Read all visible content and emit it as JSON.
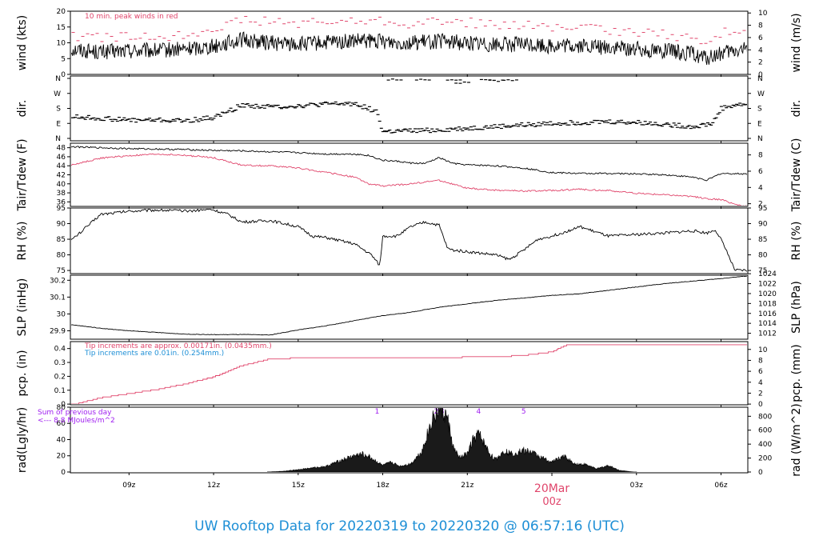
{
  "title": "UW Rooftop Data for 20220319  to  20220320 @ 06:57:16  (UTC)",
  "date_marker": {
    "date": "20Mar",
    "hour": "00z"
  },
  "colors": {
    "black": "#000000",
    "red": "#e0456b",
    "blue": "#1e8fd6",
    "purple": "#a020f0"
  },
  "x_axis": {
    "range_hours": [
      6.92,
      30.95
    ],
    "ticks": [
      {
        "h": 9,
        "label": "09z"
      },
      {
        "h": 12,
        "label": "12z"
      },
      {
        "h": 15,
        "label": "15z"
      },
      {
        "h": 18,
        "label": "18z"
      },
      {
        "h": 21,
        "label": "21z"
      },
      {
        "h": 27,
        "label": "03z"
      },
      {
        "h": 30,
        "label": "06z"
      }
    ]
  },
  "chart_data": [
    {
      "type": "line",
      "panel": "wind",
      "ylabel_left": "wind (kts)",
      "ylabel_right": "wind (m/s)",
      "ylim": [
        0,
        20
      ],
      "yticks": [
        0,
        5,
        10,
        15,
        20
      ],
      "right_ylim": [
        0,
        10.29
      ],
      "right_yticks": [
        0,
        2,
        4,
        6,
        8,
        10
      ],
      "annotation": "10 min. peak winds in red",
      "series": [
        {
          "role": "wind",
          "color": "#000000",
          "x": [
            7,
            8,
            9,
            10,
            11,
            12,
            13,
            14,
            15,
            16,
            17,
            18,
            19,
            20,
            21,
            22,
            23,
            24,
            25,
            26,
            27,
            28,
            29,
            29.5,
            30,
            30.9
          ],
          "y": [
            8,
            7,
            7.5,
            7.5,
            8,
            9,
            11,
            10,
            9.5,
            10,
            10.5,
            10.5,
            10,
            10.5,
            10,
            9.5,
            9.5,
            9,
            9,
            8.5,
            8,
            7.5,
            6.5,
            5,
            6.5,
            8
          ]
        },
        {
          "role": "peak",
          "color": "#e0456b",
          "style": "dashes",
          "x": [
            7,
            8,
            9,
            10,
            11,
            12,
            13,
            14,
            15,
            16,
            17,
            18,
            19,
            20,
            21,
            22,
            23,
            24,
            25,
            26,
            27,
            28,
            29,
            29.5,
            30,
            30.9
          ],
          "y": [
            12,
            11.5,
            12,
            12,
            12.5,
            15,
            17,
            17,
            16,
            16.5,
            17,
            17,
            16,
            17,
            16.5,
            15.5,
            15.5,
            15,
            14.5,
            14,
            13.5,
            12.5,
            11.5,
            9,
            13,
            15
          ]
        }
      ]
    },
    {
      "type": "scatter",
      "panel": "dir",
      "ylabel_left": "dir.",
      "ylabel_right": "dir.",
      "categories": [
        "N",
        "E",
        "S",
        "W",
        "N"
      ],
      "ylim": [
        0,
        360
      ],
      "series": [
        {
          "role": "direction_deg",
          "color": "#000000",
          "x": [
            7,
            8,
            9,
            10,
            11,
            12,
            12.5,
            13,
            14,
            15,
            16,
            17,
            17.8,
            18,
            19,
            20,
            21,
            22,
            23,
            24,
            25,
            26,
            27,
            28,
            29,
            29.7,
            30,
            30.5,
            30.9
          ],
          "y": [
            130,
            120,
            110,
            110,
            105,
            125,
            160,
            200,
            190,
            195,
            205,
            210,
            160,
            40,
            45,
            50,
            60,
            70,
            80,
            90,
            95,
            100,
            95,
            85,
            70,
            90,
            180,
            200,
            205
          ]
        },
        {
          "role": "direction_deg_scattered",
          "color": "#000000",
          "x": [
            18.2,
            19.2,
            20.3,
            20.6,
            21.5,
            21.8,
            22.3
          ],
          "y": [
            358,
            356,
            355,
            340,
            355,
            350,
            352
          ]
        }
      ]
    },
    {
      "type": "line",
      "panel": "temp",
      "ylabel_left": "Tair/Tdew (F)",
      "ylabel_right": "Tair/Tdew (C)",
      "ylim": [
        35,
        49
      ],
      "yticks": [
        36,
        38,
        40,
        42,
        44,
        46,
        48
      ],
      "right_ylim": [
        1.67,
        9.44
      ],
      "right_yticks": [
        2,
        4,
        6,
        8
      ],
      "series": [
        {
          "role": "Tair",
          "color": "#000000",
          "x": [
            7,
            8,
            9,
            10,
            11,
            12,
            13,
            14,
            15,
            16,
            17,
            17.5,
            18,
            18.5,
            19,
            19.5,
            20,
            20.5,
            21,
            22,
            23,
            24,
            25,
            26,
            27,
            28,
            29,
            29.5,
            30,
            30.9
          ],
          "y": [
            48.2,
            48,
            47.8,
            47.7,
            47.6,
            47.4,
            47.3,
            47.1,
            46.9,
            46.6,
            46.6,
            46.3,
            45.2,
            45,
            44.6,
            44.5,
            45.8,
            44.5,
            44.2,
            44,
            43.5,
            42.5,
            42.3,
            42.3,
            42.2,
            42,
            41.5,
            40.8,
            42.3,
            42.2
          ]
        },
        {
          "role": "Tdew",
          "color": "#e0456b",
          "x": [
            7,
            8,
            9,
            10,
            11,
            12,
            13,
            14,
            15,
            16,
            17,
            17.5,
            18,
            19,
            20,
            21,
            22,
            23,
            24,
            25,
            26,
            27,
            28,
            29,
            29.5,
            30,
            30.5,
            30.9
          ],
          "y": [
            44.2,
            45.7,
            46.2,
            46.6,
            46.3,
            45.8,
            44.1,
            44,
            43.5,
            42.5,
            41.5,
            40,
            39.5,
            40,
            40.8,
            39,
            38.6,
            38.4,
            38.5,
            38.8,
            38.5,
            37.9,
            37.6,
            37.2,
            36.7,
            36.5,
            35.5,
            35
          ]
        }
      ]
    },
    {
      "type": "line",
      "panel": "rh",
      "ylabel_left": "RH (%)",
      "ylabel_right": "RH (%)",
      "ylim": [
        74,
        95
      ],
      "yticks": [
        75,
        80,
        85,
        90,
        95
      ],
      "series": [
        {
          "role": "RH",
          "color": "#000000",
          "x": [
            7,
            7.5,
            8,
            9,
            10,
            11,
            11.9,
            12.5,
            13,
            14,
            15,
            15.5,
            16,
            17,
            17.6,
            17.9,
            18,
            18.5,
            19,
            19.5,
            20,
            20.3,
            20.5,
            21,
            22,
            22.5,
            23,
            23.5,
            24,
            25,
            26,
            27,
            28,
            29,
            29.5,
            29.8,
            30,
            30.5,
            30.9
          ],
          "y": [
            85,
            89,
            93,
            94,
            94.4,
            94,
            94.6,
            93,
            90.5,
            91,
            89,
            86,
            85.5,
            83.5,
            80,
            76.5,
            86,
            86,
            89,
            90.5,
            89.5,
            82,
            81.5,
            81,
            80,
            78.5,
            81.5,
            85,
            86,
            89,
            86,
            86.5,
            87,
            87.7,
            87,
            88,
            85,
            75,
            75
          ]
        }
      ]
    },
    {
      "type": "line",
      "panel": "slp",
      "ylabel_left": "SLP (inHg)",
      "ylabel_right": "SLP (hPa)",
      "ylim": [
        29.85,
        30.23
      ],
      "yticks": [
        29.9,
        30.0,
        30.1,
        30.2
      ],
      "right_ylim": [
        1010.8,
        1023.7
      ],
      "right_yticks": [
        1012,
        1014,
        1016,
        1018,
        1020,
        1022,
        1024
      ],
      "series": [
        {
          "role": "SLP",
          "color": "#000000",
          "x": [
            7,
            8,
            9,
            10,
            11,
            12,
            13,
            14,
            15,
            16,
            17,
            18,
            19,
            20,
            21,
            22,
            23,
            24,
            25,
            26,
            27,
            28,
            29,
            30,
            30.9
          ],
          "y": [
            29.935,
            29.915,
            29.9,
            29.89,
            29.88,
            29.877,
            29.878,
            29.875,
            29.905,
            29.93,
            29.96,
            29.99,
            30.01,
            30.04,
            30.06,
            30.08,
            30.095,
            30.11,
            30.12,
            30.14,
            30.16,
            30.18,
            30.195,
            30.21,
            30.225
          ]
        }
      ]
    },
    {
      "type": "line",
      "panel": "pcp",
      "ylabel_left": "pcp. (in)",
      "ylabel_right": "pcp. (mm)",
      "ylim": [
        -0.005,
        0.45
      ],
      "yticks": [
        0.0,
        0.1,
        0.2,
        0.3,
        0.4
      ],
      "right_ylim": [
        -0.13,
        11.43
      ],
      "right_yticks": [
        0,
        2,
        4,
        6,
        8,
        10
      ],
      "annotations": [
        {
          "text": "Tip increments are approx. 0.00171in. (0.0435mm.)",
          "color": "#e0456b"
        },
        {
          "text": "Tip increments are 0.01in. (0.254mm.)",
          "color": "#1e8fd6"
        }
      ],
      "series": [
        {
          "role": "precip",
          "color": "#e0456b",
          "x": [
            7,
            8,
            9,
            10,
            11,
            12,
            13,
            14,
            15,
            16,
            17,
            18,
            19,
            20,
            21,
            22,
            23,
            24,
            24.5,
            25,
            26,
            27,
            28,
            29,
            30,
            30.9
          ],
          "y": [
            0.0,
            0.05,
            0.08,
            0.11,
            0.15,
            0.2,
            0.28,
            0.33,
            0.335,
            0.335,
            0.335,
            0.336,
            0.337,
            0.338,
            0.343,
            0.345,
            0.355,
            0.38,
            0.43,
            0.435,
            0.435,
            0.435,
            0.435,
            0.435,
            0.435,
            0.435
          ]
        }
      ]
    },
    {
      "type": "area",
      "panel": "rad",
      "ylabel_left": "rad(Lgly/hr)",
      "ylabel_right": "rad (W/m^2)",
      "ylim": [
        -1,
        80
      ],
      "yticks": [
        0,
        20,
        40,
        60,
        80
      ],
      "right_ylim": [
        -11.6,
        930
      ],
      "right_yticks": [
        0,
        200,
        400,
        600,
        800
      ],
      "annotations": [
        {
          "text": "Sum of previous day",
          "color": "#a020f0"
        },
        {
          "text": "<--- 8.8 MJoules/m^2",
          "color": "#a020f0"
        }
      ],
      "markers": [
        {
          "label": "1",
          "x": 17.8
        },
        {
          "label": "2",
          "x": 19.9
        },
        {
          "label": "3",
          "x": 20.1
        },
        {
          "label": "4",
          "x": 21.4
        },
        {
          "label": "5",
          "x": 23
        }
      ],
      "series": [
        {
          "role": "radiation",
          "color": "#000000",
          "x": [
            13.9,
            14.5,
            15,
            15.5,
            16,
            16.5,
            17,
            17.3,
            17.5,
            18,
            18.3,
            18.6,
            19,
            19.4,
            19.6,
            19.8,
            20,
            20.1,
            20.3,
            20.5,
            20.7,
            21,
            21.2,
            21.4,
            21.6,
            21.8,
            22,
            22.3,
            22.6,
            23,
            23.3,
            23.6,
            24,
            24.4,
            24.8,
            25.2,
            25.6,
            26,
            26.4,
            26.9
          ],
          "y": [
            0,
            1,
            3,
            5,
            7,
            14,
            20,
            22,
            19,
            8,
            12,
            7,
            10,
            26,
            48,
            70,
            79,
            75,
            65,
            30,
            18,
            22,
            40,
            47,
            35,
            22,
            15,
            26,
            22,
            27,
            24,
            18,
            12,
            20,
            10,
            9,
            4,
            8,
            2,
            0
          ]
        }
      ]
    }
  ]
}
